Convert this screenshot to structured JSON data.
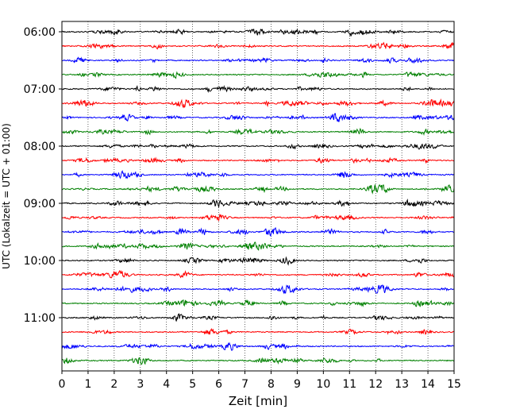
{
  "chart_data": {
    "type": "line",
    "title": "",
    "xlabel": "Zeit  [min]",
    "ylabel": "UTC (Lokalzeit = UTC + 01:00)",
    "xlim": [
      0,
      15
    ],
    "x_ticks": [
      0,
      1,
      2,
      3,
      4,
      5,
      6,
      7,
      8,
      9,
      10,
      11,
      12,
      13,
      14,
      15
    ],
    "x_tick_labels": [
      "0",
      "1",
      "2",
      "3",
      "4",
      "5",
      "6",
      "7",
      "8",
      "9",
      "10",
      "11",
      "12",
      "13",
      "14",
      "15"
    ],
    "grid": "vertical-dotted",
    "traces_per_hour": 4,
    "trace_interval_min": 15,
    "first_trace_time": "06:00",
    "last_trace_time": "11:45",
    "trace_colors": [
      "#000000",
      "#ff0000",
      "#0000ff",
      "#008000"
    ],
    "y_tick_labels": [
      "06:00",
      "07:00",
      "08:00",
      "09:00",
      "10:00",
      "11:00"
    ],
    "trace_count": 24
  }
}
